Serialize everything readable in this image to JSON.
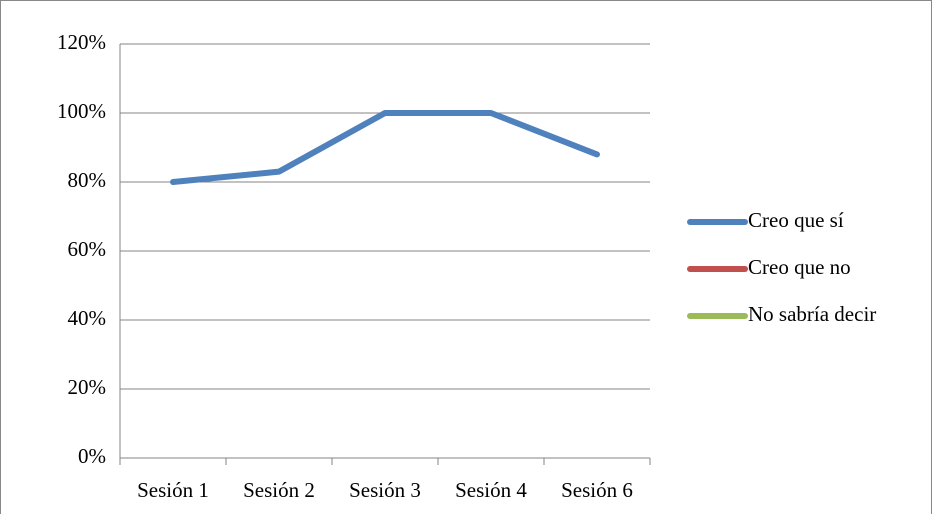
{
  "chart_data": {
    "type": "line",
    "categories": [
      "Sesión 1",
      "Sesión 2",
      "Sesión 3",
      "Sesión 4",
      "Sesión 6"
    ],
    "series": [
      {
        "name": "Creo que sí",
        "color": "#4f81bd",
        "values": [
          80,
          83,
          100,
          100,
          88
        ]
      },
      {
        "name": "Creo que no",
        "color": "#c0504d",
        "values": [
          null,
          null,
          null,
          null,
          null
        ]
      },
      {
        "name": "No sabría decir",
        "color": "#9bbb59",
        "values": [
          null,
          null,
          null,
          null,
          null
        ]
      }
    ],
    "ylim": [
      0,
      120
    ],
    "yticks": [
      {
        "value": 0,
        "label": "0%"
      },
      {
        "value": 20,
        "label": "20%"
      },
      {
        "value": 40,
        "label": "40%"
      },
      {
        "value": 60,
        "label": "60%"
      },
      {
        "value": 80,
        "label": "80%"
      },
      {
        "value": 100,
        "label": "100%"
      },
      {
        "value": 120,
        "label": "120%"
      }
    ],
    "grid": true,
    "legend": "right"
  }
}
